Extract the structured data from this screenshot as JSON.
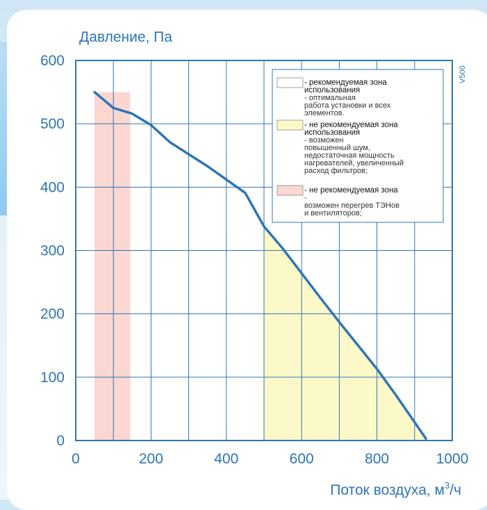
{
  "chart_data": {
    "type": "line",
    "title": "",
    "xlabel": "Поток воздуха, м",
    "xlabel_sup": "3",
    "xlabel_tail": "/ч",
    "ylabel": "Давление, Па",
    "xlim": [
      0,
      1000
    ],
    "ylim": [
      0,
      600
    ],
    "x_ticks": [
      "0",
      "200",
      "400",
      "600",
      "800",
      "1000"
    ],
    "y_ticks": [
      "0",
      "100",
      "200",
      "300",
      "400",
      "500",
      "600"
    ],
    "grid": true,
    "model_label": "V500",
    "series": [
      {
        "name": "",
        "color": "#2f74b5",
        "points": [
          [
            50,
            550
          ],
          [
            100,
            525
          ],
          [
            150,
            516
          ],
          [
            200,
            498
          ],
          [
            250,
            471
          ],
          [
            300,
            452
          ],
          [
            350,
            433
          ],
          [
            400,
            412
          ],
          [
            450,
            391
          ],
          [
            500,
            338
          ],
          [
            550,
            303
          ],
          [
            600,
            264
          ],
          [
            650,
            225
          ],
          [
            700,
            187
          ],
          [
            750,
            150
          ],
          [
            800,
            113
          ],
          [
            850,
            72
          ],
          [
            930,
            3
          ]
        ]
      }
    ],
    "zones": [
      {
        "kind": "red",
        "color": "#fad7d1",
        "x_from": 50,
        "x_to": 145,
        "y_top": 550
      },
      {
        "kind": "yellow",
        "color": "#fcf9c8",
        "x_from": 500,
        "x_to": 930
      }
    ],
    "legend": {
      "placement": "top-right",
      "entries": [
        {
          "swatch": "#ffffff",
          "bold": "- рекомендуемая зона использования",
          "rest": " - оптимальная работа установки и всех элементов.",
          "lines": [
            [
              "b",
              "- рекомендуемая зона"
            ],
            [
              "b",
              "использования"
            ],
            [
              "n",
              " - оптимальная"
            ],
            [
              "n",
              "работа установки и всех"
            ],
            [
              "n",
              "элементов."
            ]
          ]
        },
        {
          "swatch": "#fcf9c8",
          "bold": "- не рекомендуемая зона использования",
          "rest": " - возможен повышенный шум, недостаточная мощность нагревателей, увеличенный расход фильтров;",
          "lines": [
            [
              "b",
              "- не рекомендуемая зона"
            ],
            [
              "b",
              "использования"
            ],
            [
              "n",
              " - возможен"
            ],
            [
              "n",
              "повышенный шум,"
            ],
            [
              "n",
              "недостаточная мощность"
            ],
            [
              "n",
              "нагревателей, увеличенный"
            ],
            [
              "n",
              "расход фильтров;"
            ]
          ]
        },
        {
          "swatch": "#fad7d1",
          "bold": "- не рекомендуемая зона",
          "rest": " - возможен перегрев ТЭНов и вентиляторов;",
          "lines": [
            [
              "b",
              "- не рекомендуемая зона"
            ],
            [
              "n",
              " -"
            ],
            [
              "n",
              "возможен перегрев ТЭНов"
            ],
            [
              "n",
              "и вентиляторов;"
            ]
          ]
        }
      ]
    },
    "colors": {
      "axis": "#2f74b5",
      "text": "#2f74b5",
      "legend_text": "#333333"
    }
  }
}
